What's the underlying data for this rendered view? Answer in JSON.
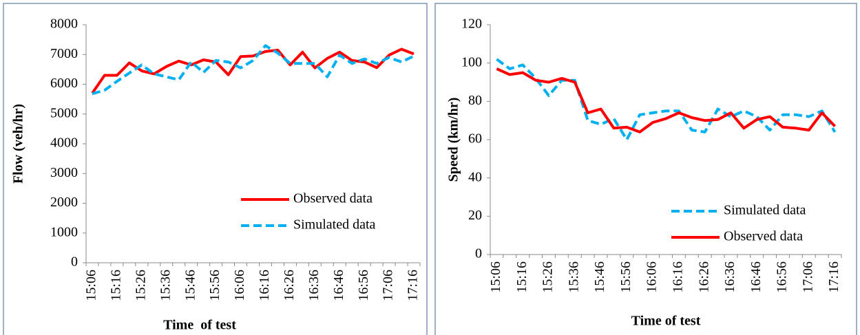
{
  "chart_data": [
    {
      "type": "line",
      "y_label": "Flow (veh/hr)",
      "x_label": "Time  of test",
      "categories": [
        "15:06",
        null,
        "15:16",
        null,
        "15:26",
        null,
        "15:36",
        null,
        "15:46",
        null,
        "15:56",
        null,
        "16:06",
        null,
        "16:16",
        null,
        "16:26",
        null,
        "16:36",
        null,
        "16:46",
        null,
        "16:56",
        null,
        "17:06",
        null,
        "17:16"
      ],
      "series": [
        {
          "name": "Observed data",
          "color": "#ff0000",
          "dash": false,
          "values": [
            5700,
            6300,
            6300,
            6720,
            6450,
            6350,
            6600,
            6780,
            6650,
            6820,
            6750,
            6320,
            6930,
            6950,
            7100,
            7150,
            6650,
            7080,
            6550,
            6870,
            7080,
            6800,
            6750,
            6560,
            6980,
            7180,
            7020
          ]
        },
        {
          "name": "Simulated data",
          "color": "#00b0f0",
          "dash": true,
          "values": [
            5680,
            5800,
            6100,
            6380,
            6650,
            6350,
            6250,
            6150,
            6750,
            6400,
            6800,
            6750,
            6550,
            6800,
            7300,
            7050,
            6700,
            6700,
            6700,
            6250,
            6980,
            6700,
            6850,
            6700,
            6900,
            6750,
            6950
          ]
        }
      ],
      "ylim": [
        0,
        8000
      ],
      "yticks": [
        0,
        1000,
        2000,
        3000,
        4000,
        5000,
        6000,
        7000,
        8000
      ],
      "grid": false,
      "legend": "lower right"
    },
    {
      "type": "line",
      "y_label": "Speed (km/hr)",
      "x_label": "Time of test",
      "categories": [
        "15:06",
        null,
        "15:16",
        null,
        "15:26",
        null,
        "15:36",
        null,
        "15:46",
        null,
        "15:56",
        null,
        "16:06",
        null,
        "16:16",
        null,
        "16:26",
        null,
        "16:36",
        null,
        "16:46",
        null,
        "16:56",
        null,
        "17:06",
        null,
        "17:16"
      ],
      "series": [
        {
          "name": "Simulated data",
          "color": "#00b0f0",
          "dash": true,
          "values": [
            102,
            97,
            99,
            92,
            83,
            91,
            91,
            70,
            68,
            71,
            60,
            73,
            74,
            75,
            75,
            65,
            64,
            76,
            72,
            75,
            72,
            65,
            73,
            73,
            72,
            75,
            64
          ]
        },
        {
          "name": "Observed data",
          "color": "#ff0000",
          "dash": false,
          "values": [
            97,
            94,
            95,
            91,
            90,
            92,
            90,
            74,
            76,
            66,
            66.5,
            64,
            69,
            71,
            74,
            71.5,
            70,
            70.5,
            74,
            66,
            70.5,
            72,
            66.5,
            66,
            65,
            74,
            67
          ]
        }
      ],
      "ylim": [
        0,
        120
      ],
      "yticks": [
        0,
        20,
        40,
        60,
        80,
        100,
        120
      ],
      "grid": false,
      "legend": "lower right"
    }
  ]
}
